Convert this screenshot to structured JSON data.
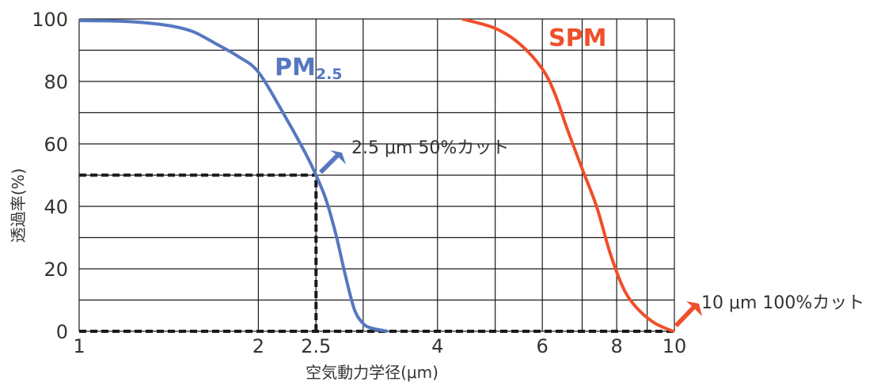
{
  "chart_data": {
    "type": "line",
    "title": "",
    "xlabel": "空気動力学径(μm)",
    "ylabel": "透過率(%)",
    "xscale": "log",
    "xlim": [
      1,
      10
    ],
    "ylim": [
      0,
      100
    ],
    "x_ticks": [
      1,
      2,
      2.5,
      4,
      6,
      8,
      10
    ],
    "x_tick_labels": [
      "1",
      "2",
      "2.5",
      "4",
      "6",
      "8",
      "10"
    ],
    "x_gridlines": [
      1,
      2,
      2.5,
      3,
      4,
      5,
      6,
      7,
      8,
      9,
      10
    ],
    "y_ticks": [
      0,
      20,
      40,
      60,
      80,
      100
    ],
    "y_tick_labels": [
      "0",
      "20",
      "40",
      "60",
      "80",
      "100"
    ],
    "y_gridlines": [
      0,
      10,
      20,
      30,
      40,
      50,
      60,
      70,
      80,
      90,
      100
    ],
    "grid": true,
    "series": [
      {
        "name": "PM2.5",
        "label_main": "PM",
        "label_sub": "2.5",
        "color": "#5677c0",
        "x": [
          1.0,
          1.2,
          1.4,
          1.55,
          1.7,
          1.85,
          2.0,
          2.2,
          2.4,
          2.5,
          2.6,
          2.7,
          2.8,
          2.9,
          3.0,
          3.1,
          3.3
        ],
        "y": [
          99.5,
          99.2,
          98.0,
          96.0,
          92.0,
          88.0,
          83.0,
          70.0,
          57.0,
          50.0,
          42.0,
          31.0,
          18.0,
          7.0,
          2.5,
          1.0,
          0.0
        ]
      },
      {
        "name": "SPM",
        "color": "#ef4f2a",
        "x": [
          4.4,
          5.0,
          5.5,
          6.0,
          6.3,
          6.6,
          7.0,
          7.4,
          7.8,
          8.2,
          8.6,
          9.2,
          9.8,
          10.0
        ],
        "y": [
          100,
          97,
          92,
          84,
          76,
          65,
          52,
          40,
          25,
          14,
          8,
          3,
          0.5,
          0
        ]
      }
    ],
    "reference_lines": [
      {
        "type": "dashed",
        "color": "#1a1a1a",
        "from": [
          1,
          50
        ],
        "to": [
          2.5,
          50
        ]
      },
      {
        "type": "dashed",
        "color": "#1a1a1a",
        "from": [
          2.5,
          0
        ],
        "to": [
          2.5,
          50
        ]
      },
      {
        "type": "dashed",
        "color": "#1a1a1a",
        "from": [
          1,
          0
        ],
        "to": [
          10,
          0
        ]
      }
    ],
    "annotations": [
      {
        "text": "2.5 μm 50%カット",
        "points_to": [
          2.5,
          50
        ],
        "arrow_color": "#5677c0"
      },
      {
        "text": "10 μm 100%カット",
        "points_to": [
          10,
          0
        ],
        "arrow_color": "#ef4f2a"
      }
    ]
  }
}
